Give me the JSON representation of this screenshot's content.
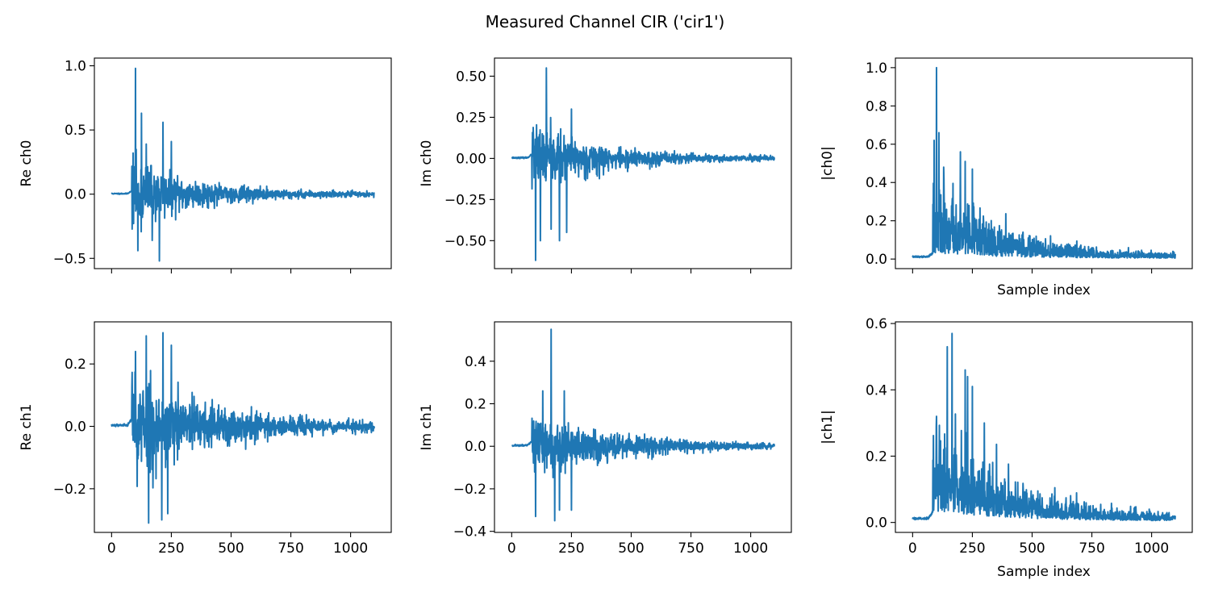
{
  "figure": {
    "title": "Measured Channel CIR ('cir1')"
  },
  "colors": {
    "line": "#1f77b4"
  },
  "chart_data": [
    {
      "type": "line",
      "ylabel": "Re ch0",
      "xlabel": "",
      "xlim": [
        -72,
        1170
      ],
      "ylim": [
        -0.58,
        1.06
      ],
      "xticks": [
        0,
        250,
        500,
        750,
        1000
      ],
      "yticks": [
        -0.5,
        0.0,
        0.5,
        1.0
      ],
      "ytick_labels": [
        "−0.5",
        "0.0",
        "0.5",
        "1.0"
      ],
      "show_xtick_labels": false,
      "signal": {
        "n": 1100,
        "onset": 85,
        "decay": 260,
        "scale": 0.13,
        "seed": 11,
        "spikes": [
          [
            100,
            0.98
          ],
          [
            110,
            -0.44
          ],
          [
            125,
            0.63
          ],
          [
            200,
            -0.52
          ],
          [
            215,
            0.56
          ],
          [
            250,
            0.41
          ],
          [
            170,
            -0.36
          ],
          [
            145,
            0.39
          ]
        ]
      },
      "series": [
        {
          "x_range": [
            0,
            1099
          ],
          "y_peak": 0.98,
          "y_min": -0.52
        }
      ]
    },
    {
      "type": "line",
      "ylabel": "Im ch0",
      "xlabel": "",
      "xlim": [
        -72,
        1170
      ],
      "ylim": [
        -0.67,
        0.61
      ],
      "xticks": [
        0,
        250,
        500,
        750,
        1000
      ],
      "yticks": [
        -0.5,
        -0.25,
        0.0,
        0.25,
        0.5
      ],
      "ytick_labels": [
        "−0.50",
        "−0.25",
        "0.00",
        "0.25",
        "0.50"
      ],
      "show_xtick_labels": false,
      "signal": {
        "n": 1100,
        "onset": 85,
        "decay": 280,
        "scale": 0.1,
        "seed": 23,
        "spikes": [
          [
            100,
            -0.62
          ],
          [
            145,
            0.55
          ],
          [
            200,
            -0.5
          ],
          [
            230,
            -0.45
          ],
          [
            250,
            0.3
          ],
          [
            165,
            -0.43
          ],
          [
            120,
            -0.5
          ]
        ]
      },
      "series": [
        {
          "x_range": [
            0,
            1099
          ],
          "y_peak": 0.55,
          "y_min": -0.62
        }
      ]
    },
    {
      "type": "line",
      "ylabel": "|ch0|",
      "xlabel": "Sample index",
      "xlim": [
        -72,
        1170
      ],
      "ylim": [
        -0.05,
        1.05
      ],
      "xticks": [
        0,
        250,
        500,
        750,
        1000
      ],
      "yticks": [
        0.0,
        0.2,
        0.4,
        0.6,
        0.8,
        1.0
      ],
      "ytick_labels": [
        "0.0",
        "0.2",
        "0.4",
        "0.6",
        "0.8",
        "1.0"
      ],
      "show_xtick_labels": false,
      "signal": {
        "n": 1100,
        "onset": 85,
        "decay": 260,
        "scale": 0.16,
        "seed": 37,
        "abs": true,
        "spikes": [
          [
            100,
            1.0
          ],
          [
            110,
            0.66
          ],
          [
            90,
            0.62
          ],
          [
            200,
            0.56
          ],
          [
            250,
            0.47
          ],
          [
            220,
            0.51
          ],
          [
            130,
            0.48
          ]
        ]
      },
      "series": [
        {
          "x_range": [
            0,
            1099
          ],
          "y_peak": 1.0,
          "y_min": 0.0
        }
      ]
    },
    {
      "type": "line",
      "ylabel": "Re ch1",
      "xlabel": "",
      "xlim": [
        -72,
        1170
      ],
      "ylim": [
        -0.34,
        0.335
      ],
      "xticks": [
        0,
        250,
        500,
        750,
        1000
      ],
      "yticks": [
        -0.2,
        0.0,
        0.2
      ],
      "ytick_labels": [
        "−0.2",
        "0.0",
        "0.2"
      ],
      "show_xtick_labels": true,
      "xtick_labels": [
        "0",
        "250",
        "500",
        "750",
        "1000"
      ],
      "signal": {
        "n": 1100,
        "onset": 85,
        "decay": 330,
        "scale": 0.085,
        "seed": 53,
        "spikes": [
          [
            215,
            0.3
          ],
          [
            145,
            0.29
          ],
          [
            155,
            -0.31
          ],
          [
            210,
            -0.3
          ],
          [
            250,
            0.26
          ],
          [
            100,
            0.24
          ],
          [
            235,
            -0.28
          ]
        ]
      },
      "series": [
        {
          "x_range": [
            0,
            1099
          ],
          "y_peak": 0.3,
          "y_min": -0.31
        }
      ]
    },
    {
      "type": "line",
      "ylabel": "Im ch1",
      "xlabel": "",
      "xlim": [
        -72,
        1170
      ],
      "ylim": [
        -0.405,
        0.585
      ],
      "xticks": [
        0,
        250,
        500,
        750,
        1000
      ],
      "yticks": [
        -0.4,
        -0.2,
        0.0,
        0.2,
        0.4
      ],
      "ytick_labels": [
        "−0.4",
        "−0.2",
        "0.0",
        "0.2",
        "0.4"
      ],
      "show_xtick_labels": true,
      "xtick_labels": [
        "0",
        "250",
        "500",
        "750",
        "1000"
      ],
      "signal": {
        "n": 1100,
        "onset": 85,
        "decay": 290,
        "scale": 0.085,
        "seed": 71,
        "spikes": [
          [
            165,
            0.55
          ],
          [
            180,
            -0.35
          ],
          [
            250,
            -0.3
          ],
          [
            100,
            -0.33
          ],
          [
            130,
            0.26
          ],
          [
            220,
            0.26
          ],
          [
            200,
            -0.3
          ]
        ]
      },
      "series": [
        {
          "x_range": [
            0,
            1099
          ],
          "y_peak": 0.55,
          "y_min": -0.35
        }
      ]
    },
    {
      "type": "line",
      "ylabel": "|ch1|",
      "xlabel": "Sample index",
      "xlim": [
        -72,
        1170
      ],
      "ylim": [
        -0.03,
        0.605
      ],
      "xticks": [
        0,
        250,
        500,
        750,
        1000
      ],
      "yticks": [
        0.0,
        0.2,
        0.4,
        0.6
      ],
      "ytick_labels": [
        "0.0",
        "0.2",
        "0.4",
        "0.6"
      ],
      "show_xtick_labels": true,
      "xtick_labels": [
        "0",
        "250",
        "500",
        "750",
        "1000"
      ],
      "signal": {
        "n": 1100,
        "onset": 85,
        "decay": 320,
        "scale": 0.1,
        "seed": 89,
        "abs": true,
        "spikes": [
          [
            165,
            0.57
          ],
          [
            145,
            0.53
          ],
          [
            220,
            0.46
          ],
          [
            250,
            0.41
          ],
          [
            100,
            0.32
          ],
          [
            230,
            0.44
          ],
          [
            300,
            0.3
          ]
        ]
      },
      "series": [
        {
          "x_range": [
            0,
            1099
          ],
          "y_peak": 0.57,
          "y_min": 0.0
        }
      ]
    }
  ]
}
